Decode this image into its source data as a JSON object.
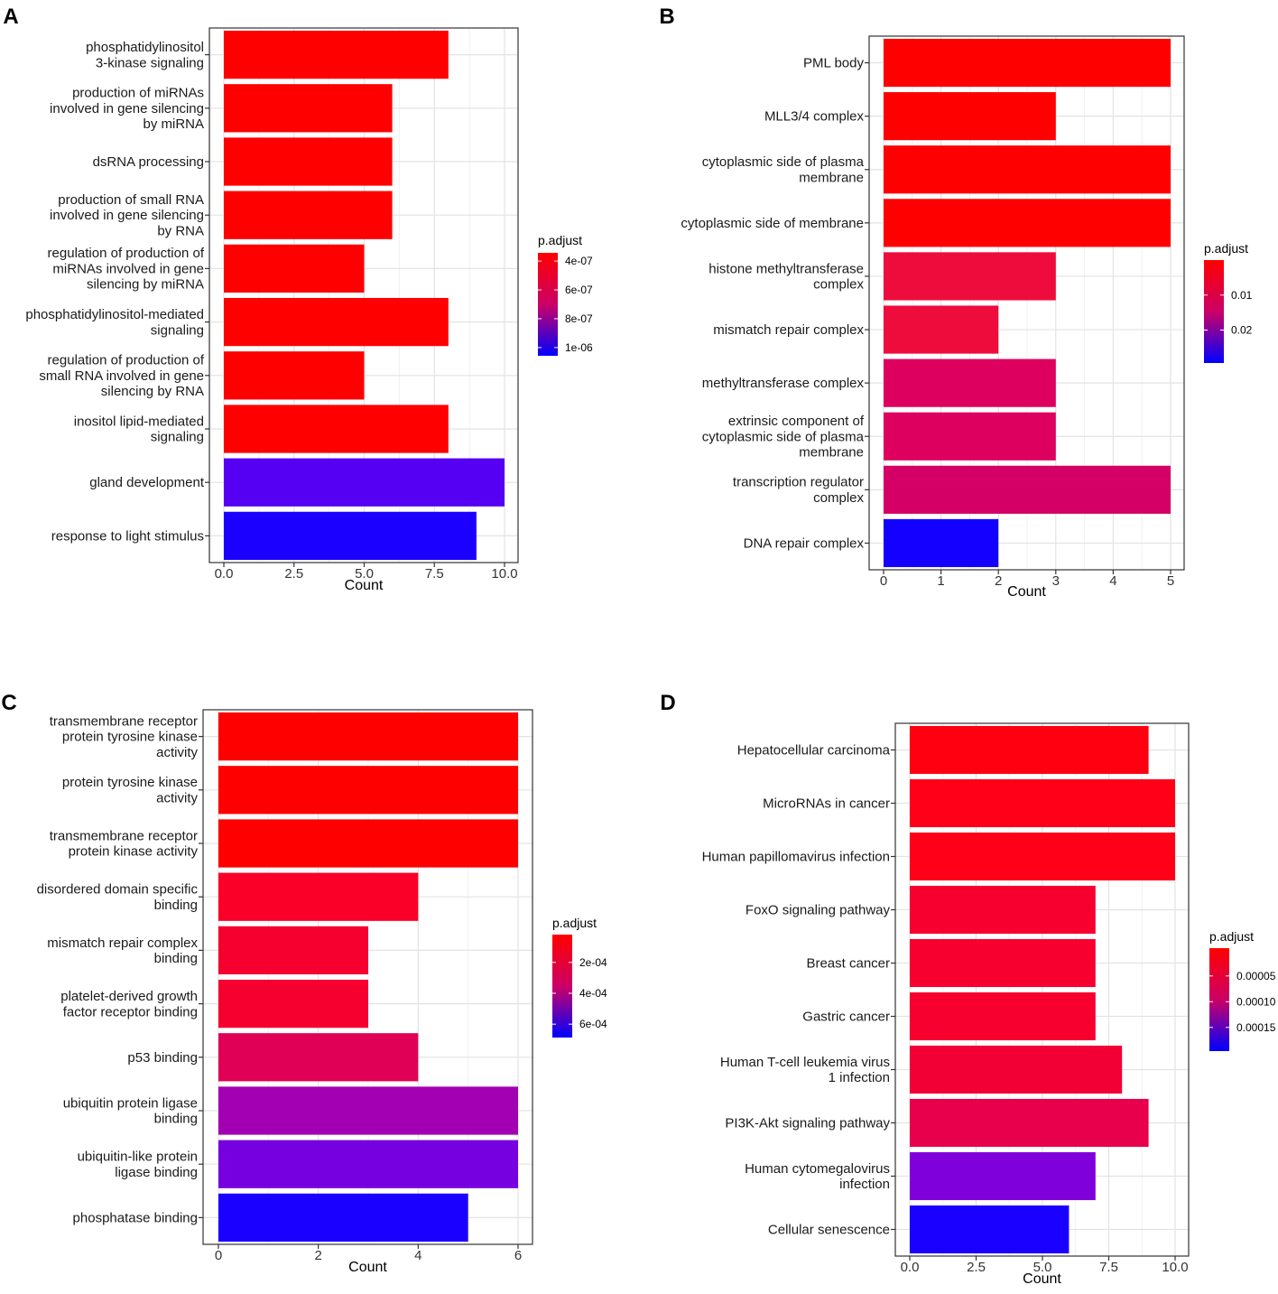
{
  "chart_data": [
    {
      "panel": "A",
      "type": "bar",
      "orientation": "horizontal",
      "xlabel": "Count",
      "xlim": [
        0,
        10
      ],
      "xticks": [
        "0.0",
        "2.5",
        "5.0",
        "7.5",
        "10.0"
      ],
      "xtick_values": [
        0,
        2.5,
        5,
        7.5,
        10
      ],
      "categories": [
        [
          "phosphatidylinositol",
          "3-kinase signaling"
        ],
        [
          "production of miRNAs",
          "involved in gene silencing",
          "by miRNA"
        ],
        [
          "dsRNA processing"
        ],
        [
          "production of small RNA",
          "involved in gene silencing",
          "by RNA"
        ],
        [
          "regulation of production of",
          "miRNAs involved in gene",
          "silencing by miRNA"
        ],
        [
          "phosphatidylinositol-mediated",
          "signaling"
        ],
        [
          "regulation of production of",
          "small RNA involved in gene",
          "silencing by RNA"
        ],
        [
          "inositol lipid-mediated",
          "signaling"
        ],
        [
          "gland development"
        ],
        [
          "response to light stimulus"
        ]
      ],
      "values": [
        8,
        6,
        6,
        6,
        5,
        8,
        5,
        8,
        10,
        9
      ],
      "colors": [
        "#ff0000",
        "#ff0000",
        "#ff0000",
        "#ff0000",
        "#ff0000",
        "#ff0000",
        "#ff0000",
        "#ff0000",
        "#5500f2",
        "#1c00ff"
      ],
      "legend": {
        "title": "p.adjust",
        "ticks": [
          "4e-07",
          "6e-07",
          "8e-07",
          "1e-06"
        ],
        "tick_fracs": [
          0.08,
          0.36,
          0.64,
          0.92
        ],
        "gradient_top": "#ff0000",
        "gradient_mid": "#cc0066",
        "gradient_bottom": "#0000ff"
      }
    },
    {
      "panel": "B",
      "type": "bar",
      "orientation": "horizontal",
      "xlabel": "Count",
      "xlim": [
        0,
        5
      ],
      "xticks": [
        "0",
        "1",
        "2",
        "3",
        "4",
        "5"
      ],
      "xtick_values": [
        0,
        1,
        2,
        3,
        4,
        5
      ],
      "categories": [
        [
          "PML body"
        ],
        [
          "MLL3/4 complex"
        ],
        [
          "cytoplasmic side of plasma",
          "membrane"
        ],
        [
          "cytoplasmic side of membrane"
        ],
        [
          "histone methyltransferase",
          "complex"
        ],
        [
          "mismatch repair complex"
        ],
        [
          "methyltransferase complex"
        ],
        [
          "extrinsic component of",
          "cytoplasmic side of plasma",
          "membrane"
        ],
        [
          "transcription regulator",
          "complex"
        ],
        [
          "DNA repair complex"
        ]
      ],
      "values": [
        5,
        3,
        5,
        5,
        3,
        2,
        3,
        3,
        5,
        2
      ],
      "colors": [
        "#ff0000",
        "#ff0000",
        "#ff0000",
        "#ff0000",
        "#ee0c3c",
        "#ee0c3c",
        "#dd005f",
        "#dd005f",
        "#d40066",
        "#1400ff"
      ],
      "legend": {
        "title": "p.adjust",
        "ticks": [
          "0.01",
          "0.02"
        ],
        "tick_fracs": [
          0.34,
          0.68
        ],
        "gradient_top": "#ff0000",
        "gradient_mid": "#cc0066",
        "gradient_bottom": "#0000ff"
      }
    },
    {
      "panel": "C",
      "type": "bar",
      "orientation": "horizontal",
      "xlabel": "Count",
      "xlim": [
        0,
        6
      ],
      "xticks": [
        "0",
        "2",
        "4",
        "6"
      ],
      "xtick_values": [
        0,
        2,
        4,
        6
      ],
      "categories": [
        [
          "transmembrane receptor",
          "protein tyrosine kinase",
          "activity"
        ],
        [
          "protein tyrosine kinase",
          "activity"
        ],
        [
          "transmembrane receptor",
          "protein kinase activity"
        ],
        [
          "disordered domain specific",
          "binding"
        ],
        [
          "mismatch repair complex",
          "binding"
        ],
        [
          "platelet-derived growth",
          "factor receptor binding"
        ],
        [
          "p53 binding"
        ],
        [
          "ubiquitin protein ligase",
          "binding"
        ],
        [
          "ubiquitin-like protein",
          "ligase binding"
        ],
        [
          "phosphatase binding"
        ]
      ],
      "values": [
        6,
        6,
        6,
        4,
        3,
        3,
        4,
        6,
        6,
        5
      ],
      "colors": [
        "#ff0000",
        "#ff0000",
        "#ff0000",
        "#fa0028",
        "#f5002f",
        "#f5002f",
        "#e00056",
        "#a300b3",
        "#7600e0",
        "#1a00ff"
      ],
      "legend": {
        "title": "p.adjust",
        "ticks": [
          "2e-04",
          "4e-04",
          "6e-04"
        ],
        "tick_fracs": [
          0.27,
          0.57,
          0.87
        ],
        "gradient_top": "#ff0000",
        "gradient_mid": "#cc0066",
        "gradient_bottom": "#0000ff"
      }
    },
    {
      "panel": "D",
      "type": "bar",
      "orientation": "horizontal",
      "xlabel": "Count",
      "xlim": [
        0,
        10
      ],
      "xticks": [
        "0.0",
        "2.5",
        "5.0",
        "7.5",
        "10.0"
      ],
      "xtick_values": [
        0,
        2.5,
        5,
        7.5,
        10
      ],
      "categories": [
        [
          "Hepatocellular carcinoma"
        ],
        [
          "MicroRNAs in cancer"
        ],
        [
          "Human papillomavirus infection"
        ],
        [
          "FoxO signaling pathway"
        ],
        [
          "Breast cancer"
        ],
        [
          "Gastric cancer"
        ],
        [
          "Human T-cell leukemia virus",
          "1 infection"
        ],
        [
          "PI3K-Akt signaling pathway"
        ],
        [
          "Human cytomegalovirus",
          "infection"
        ],
        [
          "Cellular senescence"
        ]
      ],
      "values": [
        9,
        10,
        10,
        7,
        7,
        7,
        8,
        9,
        7,
        6
      ],
      "colors": [
        "#ff0010",
        "#ff0018",
        "#ff0018",
        "#f70030",
        "#f70030",
        "#f70030",
        "#f20035",
        "#e8004c",
        "#8000dc",
        "#1a00ff"
      ],
      "legend": {
        "title": "p.adjust",
        "ticks": [
          "0.00005",
          "0.00010",
          "0.00015"
        ],
        "tick_fracs": [
          0.27,
          0.52,
          0.77
        ],
        "gradient_top": "#ff0000",
        "gradient_mid": "#cc0066",
        "gradient_bottom": "#0000ff"
      }
    }
  ]
}
